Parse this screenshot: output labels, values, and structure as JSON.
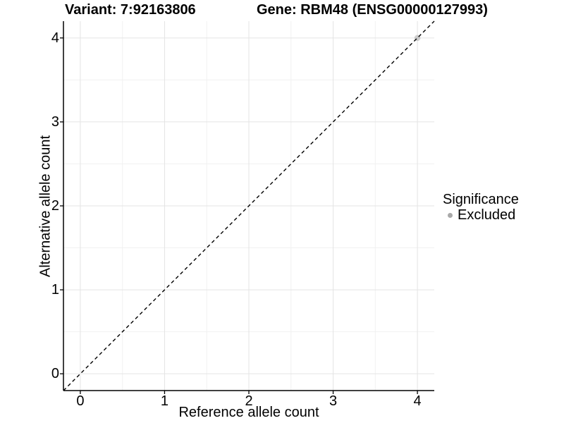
{
  "titles": {
    "variant": "Variant: 7:92163806",
    "gene": "Gene: RBM48 (ENSG00000127993)"
  },
  "axes": {
    "x": {
      "label": "Reference allele count"
    },
    "y": {
      "label": "Alternative allele count"
    }
  },
  "legend": {
    "title": "Significance",
    "items": [
      {
        "label": "Excluded",
        "color": "#A9A9A9"
      }
    ]
  },
  "chart_data": {
    "type": "scatter",
    "title_left": "Variant: 7:92163806",
    "title_right": "Gene: RBM48 (ENSG00000127993)",
    "xlabel": "Reference allele count",
    "ylabel": "Alternative allele count",
    "xlim": [
      -0.2,
      4.2
    ],
    "ylim": [
      -0.2,
      4.2
    ],
    "x_ticks": [
      0,
      1,
      2,
      3,
      4
    ],
    "y_ticks": [
      0,
      1,
      2,
      3,
      4
    ],
    "x_minor": [
      0.5,
      1.5,
      2.5,
      3.5
    ],
    "y_minor": [
      0.5,
      1.5,
      2.5,
      3.5
    ],
    "grid": "major+minor",
    "legend_position": "right",
    "series": [
      {
        "name": "Excluded",
        "color": "#A9A9A9",
        "opacity": 0.55,
        "point_radius": 4.3,
        "points": [
          {
            "x": 4,
            "y": 4
          }
        ]
      }
    ],
    "reference_line": {
      "slope": 1,
      "intercept": 0,
      "style": "dashed",
      "color": "#000000"
    }
  },
  "style": {
    "background": "#FFFFFF",
    "major_grid_color": "#E4E4E4",
    "minor_grid_color": "#F1F1F1",
    "axis_color": "#000000",
    "text_color": "#000000"
  }
}
